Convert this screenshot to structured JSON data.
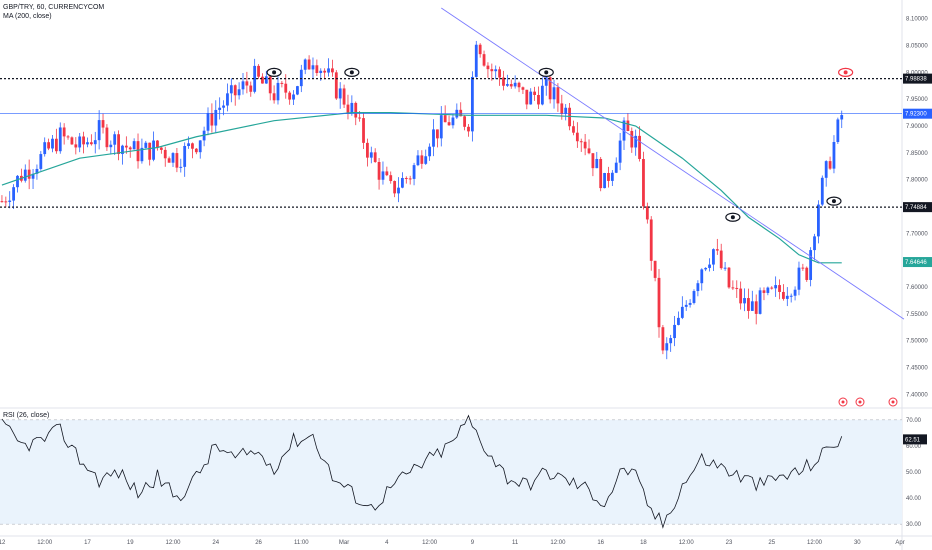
{
  "header": {
    "symbol": "GBP/TRY, 60, CURRENCYCOM",
    "ma_label": "MA (200, close)",
    "rsi_label": "RSI (26, close)"
  },
  "colors": {
    "up": "#2962ff",
    "down": "#f23645",
    "ma": "#26a69a",
    "trendline": "#7b7bff",
    "rsi_line": "#131722",
    "rsi_band": "#eaf3fc",
    "price_tag_blue": "#2962ff",
    "price_tag_teal": "#26a69a"
  },
  "chart_data": [
    {
      "type": "candlestick",
      "title": "GBP/TRY, 60, CURRENCYCOM",
      "y_ticks": [
        "8.10000",
        "8.05000",
        "8.00000",
        "7.95000",
        "7.90000",
        "7.85000",
        "7.80000",
        "7.75000",
        "7.70000",
        "7.65000",
        "7.60000",
        "7.55000",
        "7.50000",
        "7.45000",
        "7.40000"
      ],
      "ylim": [
        7.38,
        8.12
      ],
      "x_ticks": [
        "12",
        "12:00",
        "17",
        "19",
        "12:00",
        "24",
        "26",
        "11:00",
        "Mar",
        "4",
        "12:00",
        "9",
        "11",
        "12:00",
        "16",
        "18",
        "12:00",
        "23",
        "25",
        "12:00",
        "30",
        "Apr"
      ],
      "x_tick_index": [
        0,
        11,
        22,
        33,
        44,
        55,
        66,
        77,
        88,
        99,
        110,
        121,
        132,
        143,
        154,
        165,
        176,
        187,
        198,
        209,
        220,
        231
      ],
      "x_count": 232,
      "close_points": [
        [
          0,
          7.76
        ],
        [
          5,
          7.81
        ],
        [
          10,
          7.84
        ],
        [
          15,
          7.88
        ],
        [
          20,
          7.86
        ],
        [
          25,
          7.89
        ],
        [
          30,
          7.87
        ],
        [
          35,
          7.85
        ],
        [
          40,
          7.86
        ],
        [
          45,
          7.84
        ],
        [
          50,
          7.87
        ],
        [
          55,
          7.93
        ],
        [
          60,
          7.96
        ],
        [
          65,
          7.99
        ],
        [
          70,
          7.96
        ],
        [
          75,
          7.97
        ],
        [
          80,
          8.03
        ],
        [
          85,
          7.98
        ],
        [
          90,
          7.93
        ],
        [
          95,
          7.84
        ],
        [
          100,
          7.78
        ],
        [
          105,
          7.81
        ],
        [
          110,
          7.88
        ],
        [
          115,
          7.91
        ],
        [
          120,
          7.91
        ],
        [
          122,
          8.07
        ],
        [
          125,
          8.01
        ],
        [
          130,
          7.98
        ],
        [
          135,
          7.95
        ],
        [
          140,
          7.97
        ],
        [
          145,
          7.93
        ],
        [
          150,
          7.87
        ],
        [
          155,
          7.79
        ],
        [
          160,
          7.89
        ],
        [
          163,
          7.87
        ],
        [
          167,
          7.66
        ],
        [
          170,
          7.47
        ],
        [
          175,
          7.55
        ],
        [
          180,
          7.64
        ],
        [
          183,
          7.67
        ],
        [
          187,
          7.6
        ],
        [
          192,
          7.56
        ],
        [
          197,
          7.58
        ],
        [
          202,
          7.6
        ],
        [
          207,
          7.63
        ],
        [
          210,
          7.76
        ],
        [
          213,
          7.84
        ],
        [
          216,
          7.92
        ]
      ],
      "moving_average_points": [
        [
          0,
          7.79
        ],
        [
          20,
          7.84
        ],
        [
          40,
          7.86
        ],
        [
          50,
          7.88
        ],
        [
          70,
          7.91
        ],
        [
          90,
          7.925
        ],
        [
          100,
          7.925
        ],
        [
          120,
          7.92
        ],
        [
          140,
          7.92
        ],
        [
          155,
          7.915
        ],
        [
          163,
          7.9
        ],
        [
          175,
          7.84
        ],
        [
          185,
          7.78
        ],
        [
          192,
          7.73
        ],
        [
          200,
          7.69
        ],
        [
          205,
          7.66
        ],
        [
          210,
          7.645
        ],
        [
          216,
          7.645
        ]
      ],
      "horizontal_levels": [
        {
          "value": 7.98838,
          "label": "7.98838",
          "style": "dashed"
        },
        {
          "value": 7.74884,
          "label": "7.74884",
          "style": "dashed"
        },
        {
          "value": 7.923,
          "label": "7.92300",
          "style": "current"
        },
        {
          "value": 7.64646,
          "label": "7.64646",
          "style": "ma"
        }
      ],
      "trendline": {
        "from": [
          113,
          8.12
        ],
        "to": [
          232,
          7.54
        ]
      },
      "eye_markers": [
        {
          "x": 70,
          "y": 8.0,
          "color": "black"
        },
        {
          "x": 90,
          "y": 8.0,
          "color": "black"
        },
        {
          "x": 140,
          "y": 8.0,
          "color": "black"
        },
        {
          "x": 188,
          "y": 7.73,
          "color": "black"
        },
        {
          "x": 214,
          "y": 7.76,
          "color": "black"
        },
        {
          "x": 217,
          "y": 8.0,
          "color": "red"
        }
      ]
    },
    {
      "type": "line",
      "title": "RSI (26, close)",
      "y_ticks": [
        "70.00",
        "60.00",
        "50.00",
        "40.00",
        "30.00"
      ],
      "ylim": [
        27,
        73
      ],
      "band": [
        30,
        70
      ],
      "last_value": "62.51",
      "points": [
        [
          0,
          68
        ],
        [
          5,
          60
        ],
        [
          10,
          62
        ],
        [
          15,
          66
        ],
        [
          20,
          55
        ],
        [
          25,
          47
        ],
        [
          30,
          50
        ],
        [
          35,
          42
        ],
        [
          40,
          48
        ],
        [
          45,
          40
        ],
        [
          50,
          48
        ],
        [
          55,
          60
        ],
        [
          60,
          55
        ],
        [
          65,
          58
        ],
        [
          70,
          52
        ],
        [
          75,
          62
        ],
        [
          80,
          64
        ],
        [
          85,
          48
        ],
        [
          90,
          42
        ],
        [
          95,
          36
        ],
        [
          100,
          44
        ],
        [
          105,
          50
        ],
        [
          110,
          55
        ],
        [
          115,
          60
        ],
        [
          120,
          70
        ],
        [
          125,
          58
        ],
        [
          130,
          48
        ],
        [
          135,
          45
        ],
        [
          140,
          50
        ],
        [
          145,
          47
        ],
        [
          150,
          44
        ],
        [
          155,
          38
        ],
        [
          160,
          52
        ],
        [
          163,
          48
        ],
        [
          167,
          35
        ],
        [
          170,
          30
        ],
        [
          175,
          45
        ],
        [
          180,
          55
        ],
        [
          185,
          52
        ],
        [
          190,
          48
        ],
        [
          195,
          45
        ],
        [
          200,
          48
        ],
        [
          205,
          50
        ],
        [
          210,
          55
        ],
        [
          213,
          60
        ],
        [
          216,
          63
        ]
      ]
    }
  ],
  "ui": {
    "extra_price_tag": "7.92300",
    "small_icons": [
      "alert-icon",
      "alert-icon",
      "settings-icon"
    ]
  }
}
